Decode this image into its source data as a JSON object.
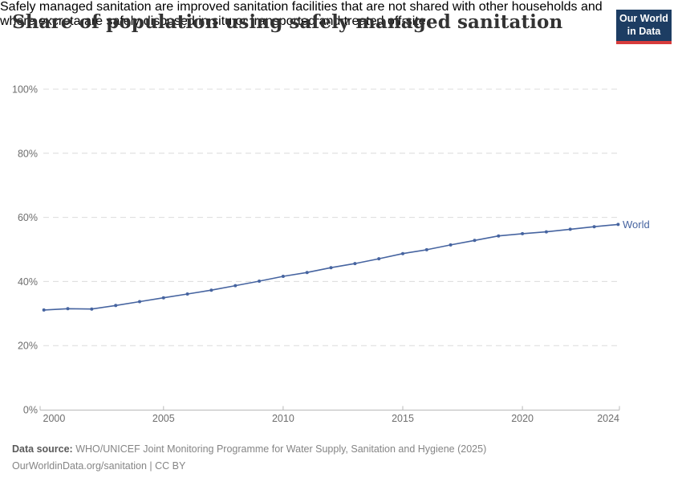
{
  "header": {
    "title": "Share of population using safely managed sanitation",
    "subtitle_line1": "Safely managed sanitation are improved sanitation facilities that are not shared with other households and",
    "subtitle_line2": "where excreta are safely disposed in situ or transported and treated off-site.",
    "logo": {
      "line1": "Our World",
      "line2": "in Data",
      "bg_color": "#1d3d63",
      "accent_color": "#d73c3c"
    }
  },
  "chart_data": {
    "type": "line",
    "title": "Share of population using safely managed sanitation",
    "x": [
      2000,
      2001,
      2002,
      2003,
      2004,
      2005,
      2006,
      2007,
      2008,
      2009,
      2010,
      2011,
      2012,
      2013,
      2014,
      2015,
      2016,
      2017,
      2018,
      2019,
      2020,
      2021,
      2022,
      2023,
      2024
    ],
    "series": [
      {
        "name": "World",
        "color": "#4664a0",
        "values": [
          31.1,
          31.5,
          31.4,
          32.5,
          33.7,
          34.9,
          36.1,
          37.3,
          38.7,
          40.1,
          41.6,
          42.8,
          44.3,
          45.6,
          47.1,
          48.7,
          49.9,
          51.4,
          52.8,
          54.2,
          54.9,
          55.5,
          56.3,
          57.1,
          57.8
        ]
      }
    ],
    "xlabel": "",
    "ylabel": "",
    "ylim": [
      0,
      100
    ],
    "yticks": [
      0,
      20,
      40,
      60,
      80,
      100
    ],
    "ytick_suffix": "%",
    "xticks": [
      2000,
      2005,
      2010,
      2015,
      2020,
      2024
    ],
    "grid": "dashed-horizontal",
    "legend_position": "end-of-line",
    "axis_color": "#b8b8b8",
    "grid_color": "#dcdcdc",
    "tick_label_color": "#6e6e6e"
  },
  "footer": {
    "source_label": "Data source:",
    "source_text": "WHO/UNICEF Joint Monitoring Programme for Water Supply, Sanitation and Hygiene (2025)",
    "url": "OurWorldinData.org/sanitation",
    "separator": " | ",
    "license": "CC BY"
  }
}
